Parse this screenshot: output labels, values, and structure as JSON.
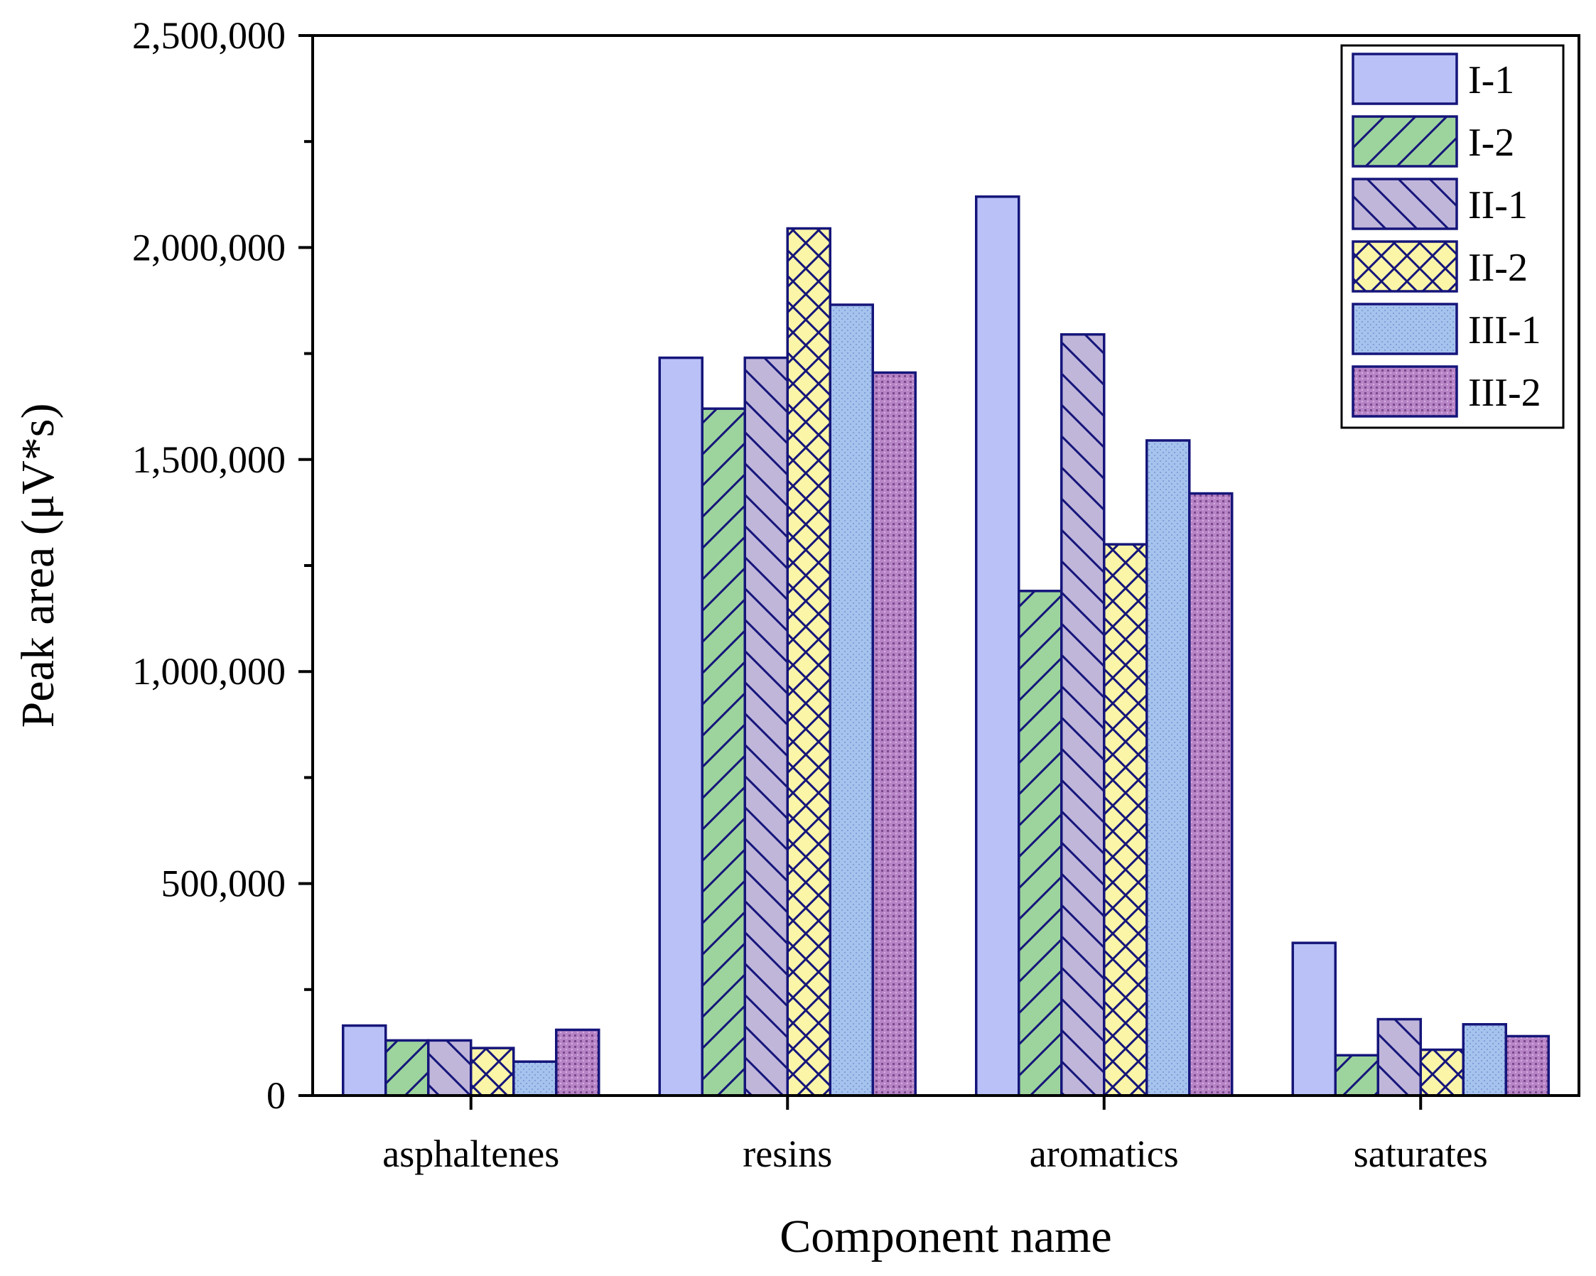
{
  "chart_data": {
    "type": "bar",
    "title": "",
    "xlabel": "Component name",
    "ylabel": "Peak area (μV*s)",
    "ylim": [
      0,
      2500000
    ],
    "yticks": [
      0,
      500000,
      1000000,
      1500000,
      2000000,
      2500000
    ],
    "ytick_labels": [
      "0",
      "500,000",
      "1,000,000",
      "1,500,000",
      "2,000,000",
      "2,500,000"
    ],
    "categories": [
      "asphaltenes",
      "resins",
      "aromatics",
      "saturates"
    ],
    "legend_position": "top-right",
    "grid": false,
    "series": [
      {
        "name": "I-1",
        "pattern": "solid",
        "color": "#b9c1f7",
        "values": [
          165000,
          1740000,
          2120000,
          360000
        ]
      },
      {
        "name": "I-2",
        "pattern": "forward-diagonal",
        "color": "#9dd49d",
        "values": [
          130000,
          1620000,
          1190000,
          95000
        ]
      },
      {
        "name": "II-1",
        "pattern": "back-diagonal",
        "color": "#c0b6da",
        "values": [
          130000,
          1740000,
          1795000,
          180000
        ]
      },
      {
        "name": "II-2",
        "pattern": "crosshatch",
        "color": "#fbf5a8",
        "values": [
          112000,
          2045000,
          1300000,
          108000
        ]
      },
      {
        "name": "III-1",
        "pattern": "fine-dots",
        "color": "#a6c3ee",
        "values": [
          80000,
          1865000,
          1545000,
          168000
        ]
      },
      {
        "name": "III-2",
        "pattern": "grid-dots",
        "color": "#b784c6",
        "values": [
          155000,
          1705000,
          1420000,
          140000
        ]
      }
    ],
    "edge_color": "#15157a"
  }
}
